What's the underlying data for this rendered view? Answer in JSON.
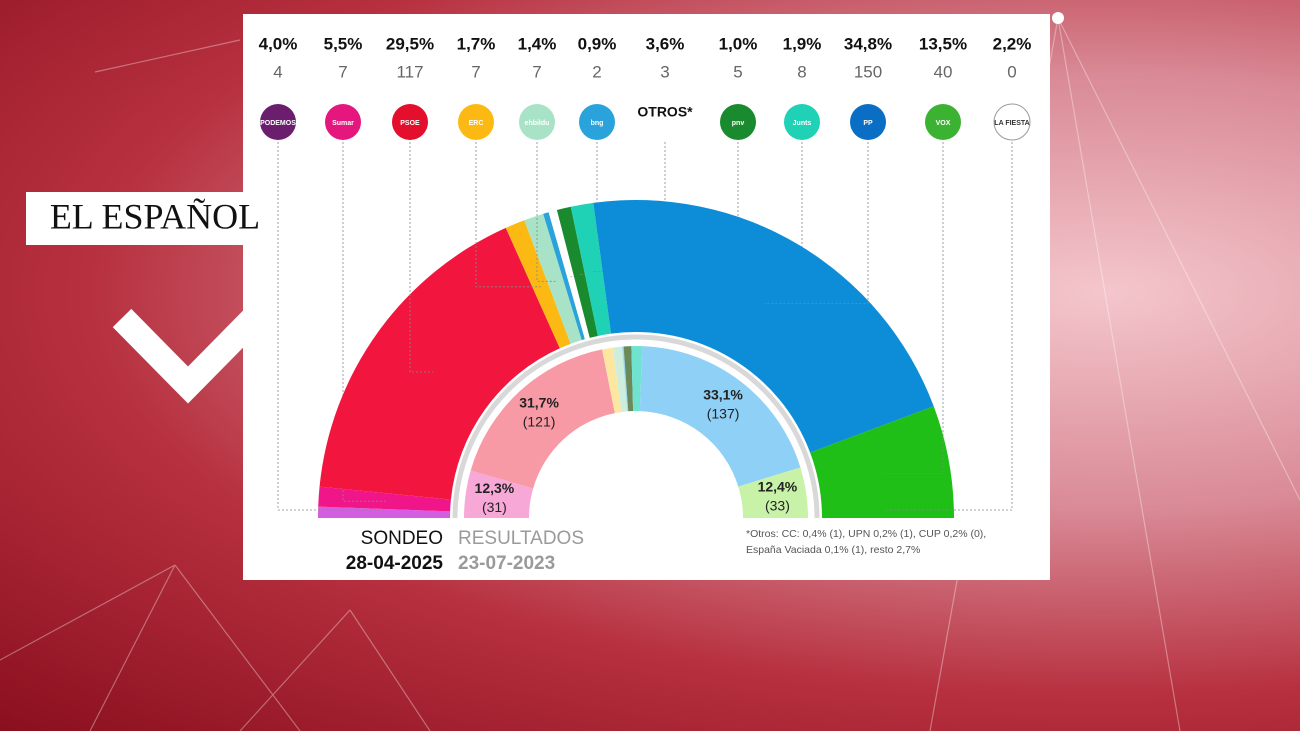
{
  "brand": "EL ESPAÑOL",
  "chart_data": {
    "type": "hemicycle",
    "categories": [
      "PODEMOS",
      "Sumar",
      "PSOE",
      "ERC",
      "ehbildu",
      "bng",
      "OTROS*",
      "pnv",
      "Junts",
      "PP",
      "VOX",
      "LA FIESTA"
    ],
    "vote_share": [
      4.0,
      5.5,
      29.5,
      1.7,
      1.4,
      0.9,
      3.6,
      1.0,
      1.9,
      34.8,
      13.5,
      2.2
    ],
    "vote_share_labels": [
      "4,0%",
      "5,5%",
      "29,5%",
      "1,7%",
      "1,4%",
      "0,9%",
      "3,6%",
      "1,0%",
      "1,9%",
      "34,8%",
      "13,5%",
      "2,2%"
    ],
    "seats": [
      4,
      7,
      117,
      7,
      7,
      2,
      3,
      5,
      8,
      150,
      40,
      0
    ],
    "logo_colors": [
      "#6b1e6e",
      "#e5177e",
      "#e30f2c",
      "#fdb913",
      "#a8e3c8",
      "#2aa3dc",
      null,
      "#1a8a2e",
      "#1fd1b5",
      "#0a6fc4",
      "#3cb233",
      "#ffffff"
    ],
    "colors": [
      "#d55ee0",
      "#f0168a",
      "#f2163f",
      "#fdb913",
      "#a8e3c8",
      "#2aa3dc",
      "#ffffff",
      "#1a8a2e",
      "#1fd1b5",
      "#0d8dd8",
      "#1fbf18",
      "#7a5230"
    ],
    "poll": {
      "label": "SONDEO",
      "date": "28-04-2025"
    },
    "previous": {
      "label": "RESULTADOS",
      "date": "23-07-2023",
      "seats": [
        31,
        121,
        7,
        6,
        1,
        5,
        7,
        137,
        33
      ],
      "percent": [
        12.3,
        31.7,
        null,
        null,
        null,
        null,
        null,
        33.1,
        12.4
      ],
      "percent_labels": [
        "12,3%",
        "31,7%",
        null,
        null,
        null,
        null,
        null,
        "33,1%",
        "12,4%"
      ],
      "seat_labels": [
        "(31)",
        "(121)",
        null,
        null,
        null,
        null,
        null,
        "(137)",
        "(33)"
      ],
      "colors": [
        "#f7a8d6",
        "#f89aa6",
        "#fde7a0",
        "#cdeedd",
        "#9fd6ef",
        "#6a8a5a",
        "#6fe3cf",
        "#8fd0f6",
        "#c8f2a8"
      ]
    },
    "footnote": [
      "*Otros: CC: 0,4% (1), UPN 0,2% (1), CUP 0,2% (0),",
      "España Vaciada 0,1% (1), resto 2,7%"
    ]
  }
}
